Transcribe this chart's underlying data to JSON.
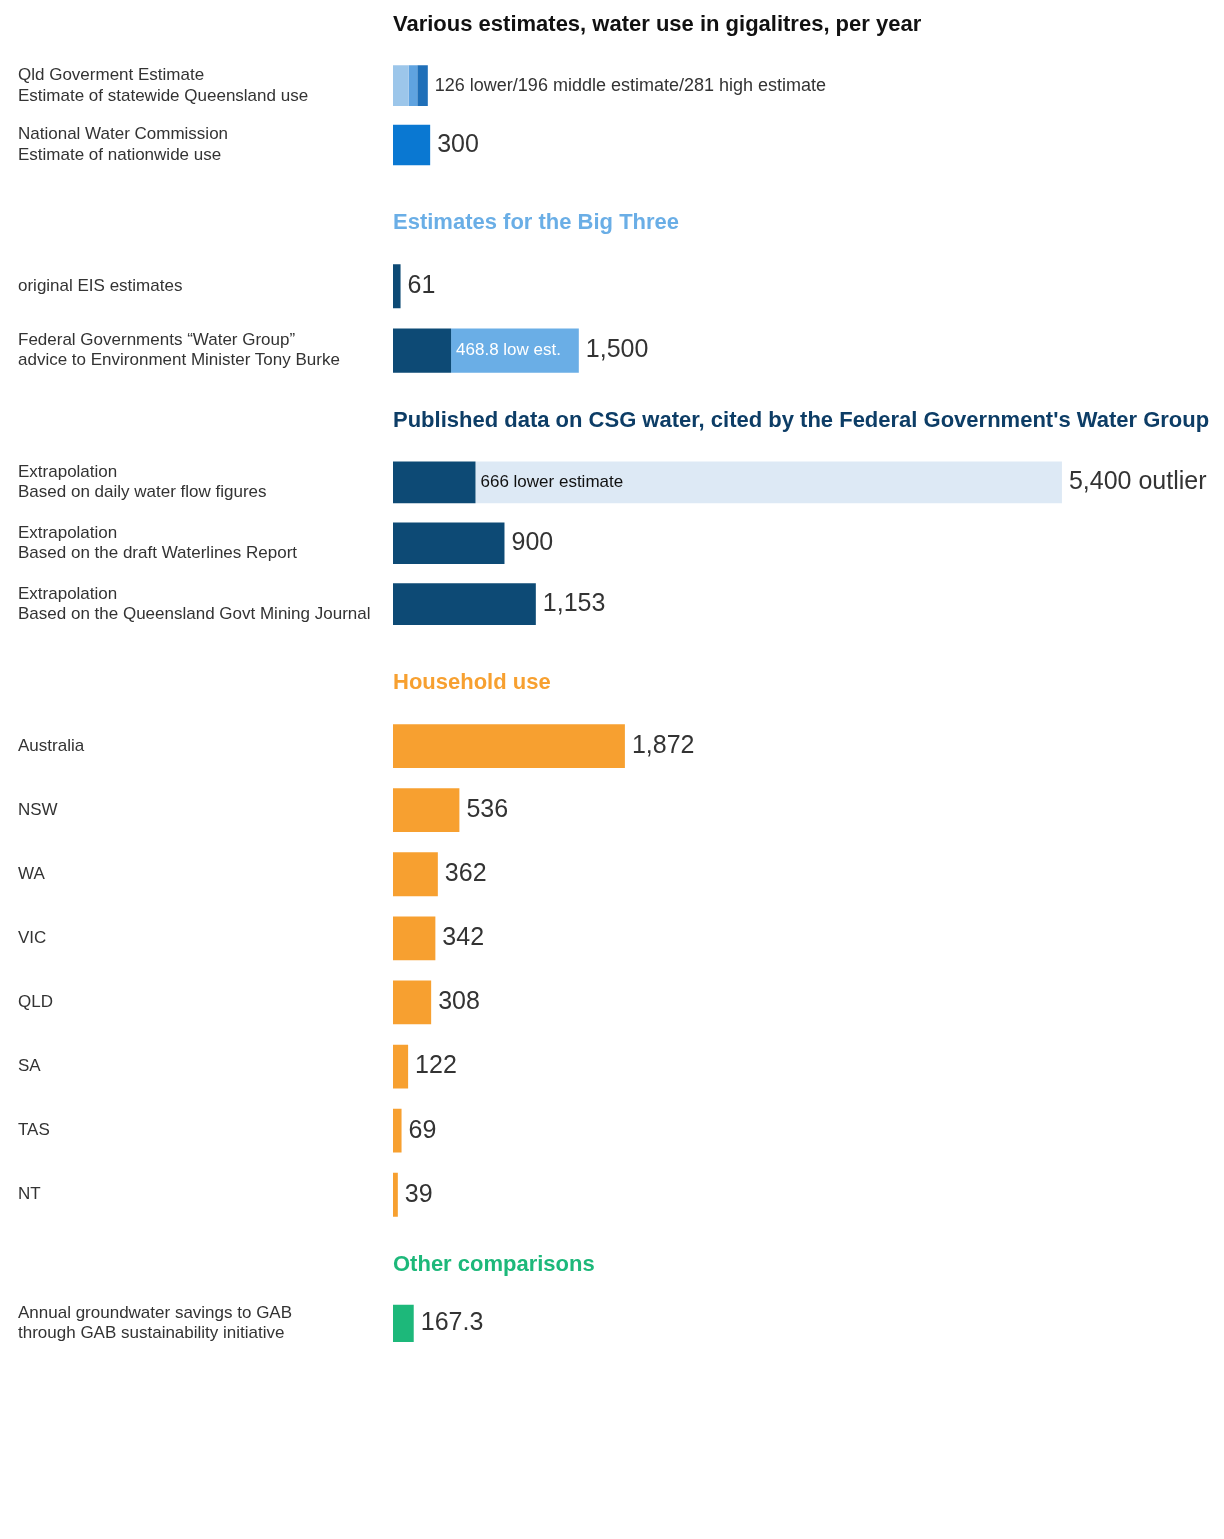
{
  "chart_data": [
    {
      "type": "bar",
      "orientation": "horizontal",
      "stacked": true,
      "title": "Various estimates, water use in gigalitres, per year",
      "categories": [
        "Qld Goverment Estimate\nEstimate of statewide Queensland use",
        "National Water Commission\nEstimate of nationwide use"
      ],
      "tick_labels": "y",
      "series": [
        {
          "color": "#9cc6ea",
          "values": [
            126,
            null
          ],
          "value_labels": [
            "126 lower/196 middle estimate/281 high estimate",
            null
          ]
        },
        {
          "color": "#5fa3e0",
          "values": [
            70,
            null
          ],
          "value_labels": [
            null,
            null
          ]
        },
        {
          "color": "#1f6fb8",
          "values": [
            85,
            null
          ],
          "value_labels": [
            null,
            null
          ]
        },
        {
          "color": "#0a78d2",
          "values": [
            null,
            300
          ],
          "value_labels": [
            null,
            "300"
          ]
        }
      ]
    },
    {
      "type": "bar",
      "orientation": "horizontal",
      "stacked": true,
      "title": "Estimates for the Big Three",
      "categories": [
        "original EIS estimates",
        "Federal Governments “Water Group”\nadvice to Environment Minister Tony Burke"
      ],
      "tick_labels": "y",
      "totals": [
        null,
        "1,500"
      ],
      "series": [
        {
          "color": "#0d4a75",
          "values": [
            61,
            468.8
          ],
          "value_labels": [
            "61",
            "468.8 low est."
          ]
        },
        {
          "color": "#6aaee6",
          "values": [
            null,
            1031.2
          ],
          "value_labels": [
            null,
            null
          ]
        }
      ]
    },
    {
      "type": "bar",
      "orientation": "horizontal",
      "stacked": true,
      "title": "Published data on CSG water, cited by the Federal Government's Water Group",
      "categories": [
        "Extrapolation\nBased on daily water flow figures",
        "Extrapolation\nBased on the draft Waterlines Report",
        "Extrapolation\nBased on the Queensland Govt Mining Journal"
      ],
      "tick_labels": "y",
      "totals": [
        "5,400 outlier",
        null,
        null
      ],
      "series": [
        {
          "color": "#0d4a75",
          "values": [
            666,
            900,
            1153
          ],
          "value_labels": [
            "666 lower estimate",
            "900",
            "1,153"
          ]
        },
        {
          "color": "#dde9f5",
          "values": [
            4734,
            null,
            null
          ],
          "value_labels": [
            null,
            null,
            null
          ]
        }
      ]
    },
    {
      "type": "bar",
      "orientation": "horizontal",
      "title": "Household use",
      "categories": [
        "Australia",
        "NSW",
        "WA",
        "VIC",
        "QLD",
        "SA",
        "TAS",
        "NT"
      ],
      "tick_labels": "y",
      "series": [
        {
          "color": "#f7a030",
          "values": [
            1872,
            536,
            362,
            342,
            308,
            122,
            69,
            39
          ],
          "value_labels": [
            "1,872",
            "536",
            "362",
            "342",
            "308",
            "122",
            "69",
            "39"
          ]
        }
      ]
    },
    {
      "type": "bar",
      "orientation": "horizontal",
      "title": "Other comparisons",
      "categories": [
        "Annual groundwater savings to GAB\nthrough GAB sustainability initiative"
      ],
      "tick_labels": "y",
      "series": [
        {
          "color": "#1db87a",
          "values": [
            167.3
          ],
          "value_labels": [
            "167.3"
          ]
        }
      ]
    }
  ]
}
